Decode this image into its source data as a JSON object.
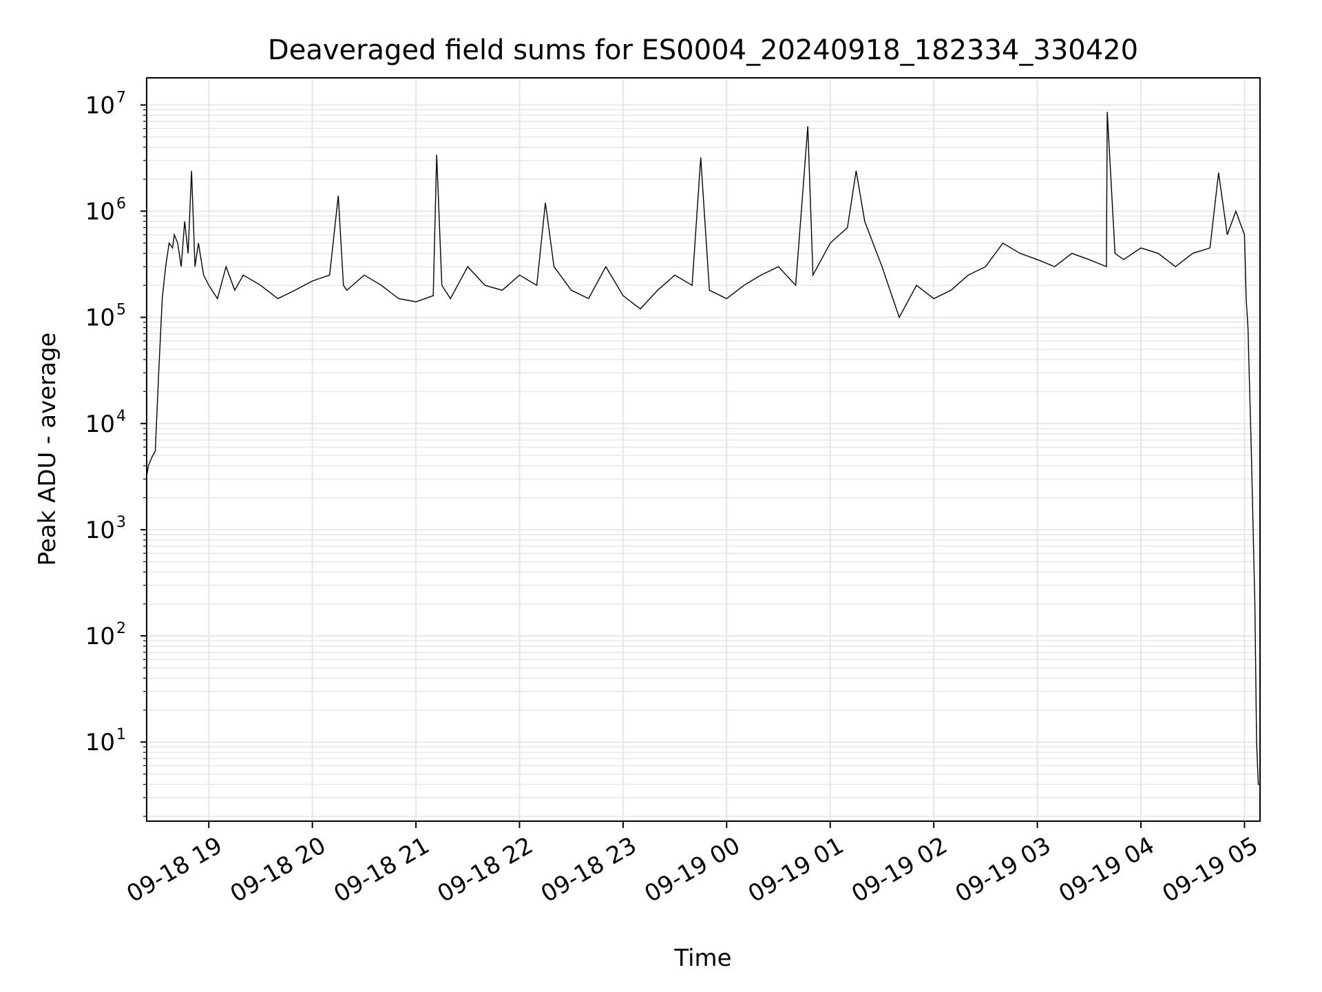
{
  "chart_data": {
    "type": "line",
    "title": "Deaveraged field sums for ES0004_20240918_182334_330420",
    "xlabel": "Time",
    "ylabel": "Peak ADU - average",
    "yscale": "log",
    "ylim": [
      1.8,
      18000000
    ],
    "xlim": [
      "2024-09-18 18:24:00",
      "2024-09-19 05:09:00"
    ],
    "grid": "major and minor, light gray",
    "x_tick_labels": [
      "09-18 19",
      "09-18 20",
      "09-18 21",
      "09-18 22",
      "09-18 23",
      "09-19 00",
      "09-19 01",
      "09-19 02",
      "09-19 03",
      "09-19 04",
      "09-19 05"
    ],
    "y_tick_labels": [
      {
        "base": "10",
        "exp": "1"
      },
      {
        "base": "10",
        "exp": "2"
      },
      {
        "base": "10",
        "exp": "3"
      },
      {
        "base": "10",
        "exp": "4"
      },
      {
        "base": "10",
        "exp": "5"
      },
      {
        "base": "10",
        "exp": "6"
      },
      {
        "base": "10",
        "exp": "7"
      }
    ],
    "line_color": "#000000",
    "series": [
      {
        "x": [
          "2024-09-18 18:24:00",
          "2024-09-18 18:25:00",
          "2024-09-18 18:27:00",
          "2024-09-18 18:29:00",
          "2024-09-18 18:31:00",
          "2024-09-18 18:33:00",
          "2024-09-18 18:35:00",
          "2024-09-18 18:37:00",
          "2024-09-18 18:39:00",
          "2024-09-18 18:40:00",
          "2024-09-18 18:42:00",
          "2024-09-18 18:44:00",
          "2024-09-18 18:46:00",
          "2024-09-18 18:48:00",
          "2024-09-18 18:50:00",
          "2024-09-18 18:52:00",
          "2024-09-18 18:54:00",
          "2024-09-18 18:57:00",
          "2024-09-18 19:00:00",
          "2024-09-18 19:05:00",
          "2024-09-18 19:10:00",
          "2024-09-18 19:15:00",
          "2024-09-18 19:20:00",
          "2024-09-18 19:30:00",
          "2024-09-18 19:40:00",
          "2024-09-18 19:50:00",
          "2024-09-18 20:00:00",
          "2024-09-18 20:10:00",
          "2024-09-18 20:15:00",
          "2024-09-18 20:18:00",
          "2024-09-18 20:20:00",
          "2024-09-18 20:30:00",
          "2024-09-18 20:40:00",
          "2024-09-18 20:50:00",
          "2024-09-18 21:00:00",
          "2024-09-18 21:10:00",
          "2024-09-18 21:12:00",
          "2024-09-18 21:15:00",
          "2024-09-18 21:20:00",
          "2024-09-18 21:30:00",
          "2024-09-18 21:40:00",
          "2024-09-18 21:50:00",
          "2024-09-18 22:00:00",
          "2024-09-18 22:10:00",
          "2024-09-18 22:15:00",
          "2024-09-18 22:20:00",
          "2024-09-18 22:30:00",
          "2024-09-18 22:40:00",
          "2024-09-18 22:50:00",
          "2024-09-18 23:00:00",
          "2024-09-18 23:10:00",
          "2024-09-18 23:20:00",
          "2024-09-18 23:30:00",
          "2024-09-18 23:40:00",
          "2024-09-18 23:45:00",
          "2024-09-18 23:50:00",
          "2024-09-19 00:00:00",
          "2024-09-19 00:10:00",
          "2024-09-19 00:20:00",
          "2024-09-19 00:30:00",
          "2024-09-19 00:40:00",
          "2024-09-19 00:47:00",
          "2024-09-19 00:50:00",
          "2024-09-19 01:00:00",
          "2024-09-19 01:10:00",
          "2024-09-19 01:15:00",
          "2024-09-19 01:20:00",
          "2024-09-19 01:30:00",
          "2024-09-19 01:40:00",
          "2024-09-19 01:50:00",
          "2024-09-19 02:00:00",
          "2024-09-19 02:10:00",
          "2024-09-19 02:20:00",
          "2024-09-19 02:30:00",
          "2024-09-19 02:40:00",
          "2024-09-19 02:50:00",
          "2024-09-19 03:00:00",
          "2024-09-19 03:10:00",
          "2024-09-19 03:20:00",
          "2024-09-19 03:30:00",
          "2024-09-19 03:40:00",
          "2024-09-19 03:40:30",
          "2024-09-19 03:45:00",
          "2024-09-19 03:50:00",
          "2024-09-19 04:00:00",
          "2024-09-19 04:10:00",
          "2024-09-19 04:20:00",
          "2024-09-19 04:30:00",
          "2024-09-19 04:40:00",
          "2024-09-19 04:45:00",
          "2024-09-19 04:50:00",
          "2024-09-19 04:55:00",
          "2024-09-19 05:00:00",
          "2024-09-19 05:01:00",
          "2024-09-19 05:02:00",
          "2024-09-19 05:03:00",
          "2024-09-19 05:04:00",
          "2024-09-19 05:05:00",
          "2024-09-19 05:06:00",
          "2024-09-19 05:07:00",
          "2024-09-19 05:08:00",
          "2024-09-19 05:09:00"
        ],
        "y": [
          3200,
          4000,
          4800,
          5500,
          30000,
          150000,
          300000,
          500000,
          450000,
          600000,
          500000,
          300000,
          800000,
          400000,
          2400000,
          300000,
          500000,
          250000,
          200000,
          150000,
          300000,
          180000,
          250000,
          200000,
          150000,
          180000,
          220000,
          250000,
          1400000,
          200000,
          180000,
          250000,
          200000,
          150000,
          140000,
          160000,
          3400000,
          200000,
          150000,
          300000,
          200000,
          180000,
          250000,
          200000,
          1200000,
          300000,
          180000,
          150000,
          300000,
          160000,
          120000,
          180000,
          250000,
          200000,
          3200000,
          180000,
          150000,
          200000,
          250000,
          300000,
          200000,
          6300000,
          250000,
          500000,
          700000,
          2400000,
          800000,
          300000,
          100000,
          200000,
          150000,
          180000,
          250000,
          300000,
          500000,
          400000,
          350000,
          300000,
          400000,
          350000,
          300000,
          8600000,
          400000,
          350000,
          450000,
          400000,
          300000,
          400000,
          450000,
          2300000,
          600000,
          1000000,
          600000,
          150000,
          80000,
          20000,
          5000,
          1000,
          200,
          10,
          4,
          4
        ]
      }
    ]
  }
}
